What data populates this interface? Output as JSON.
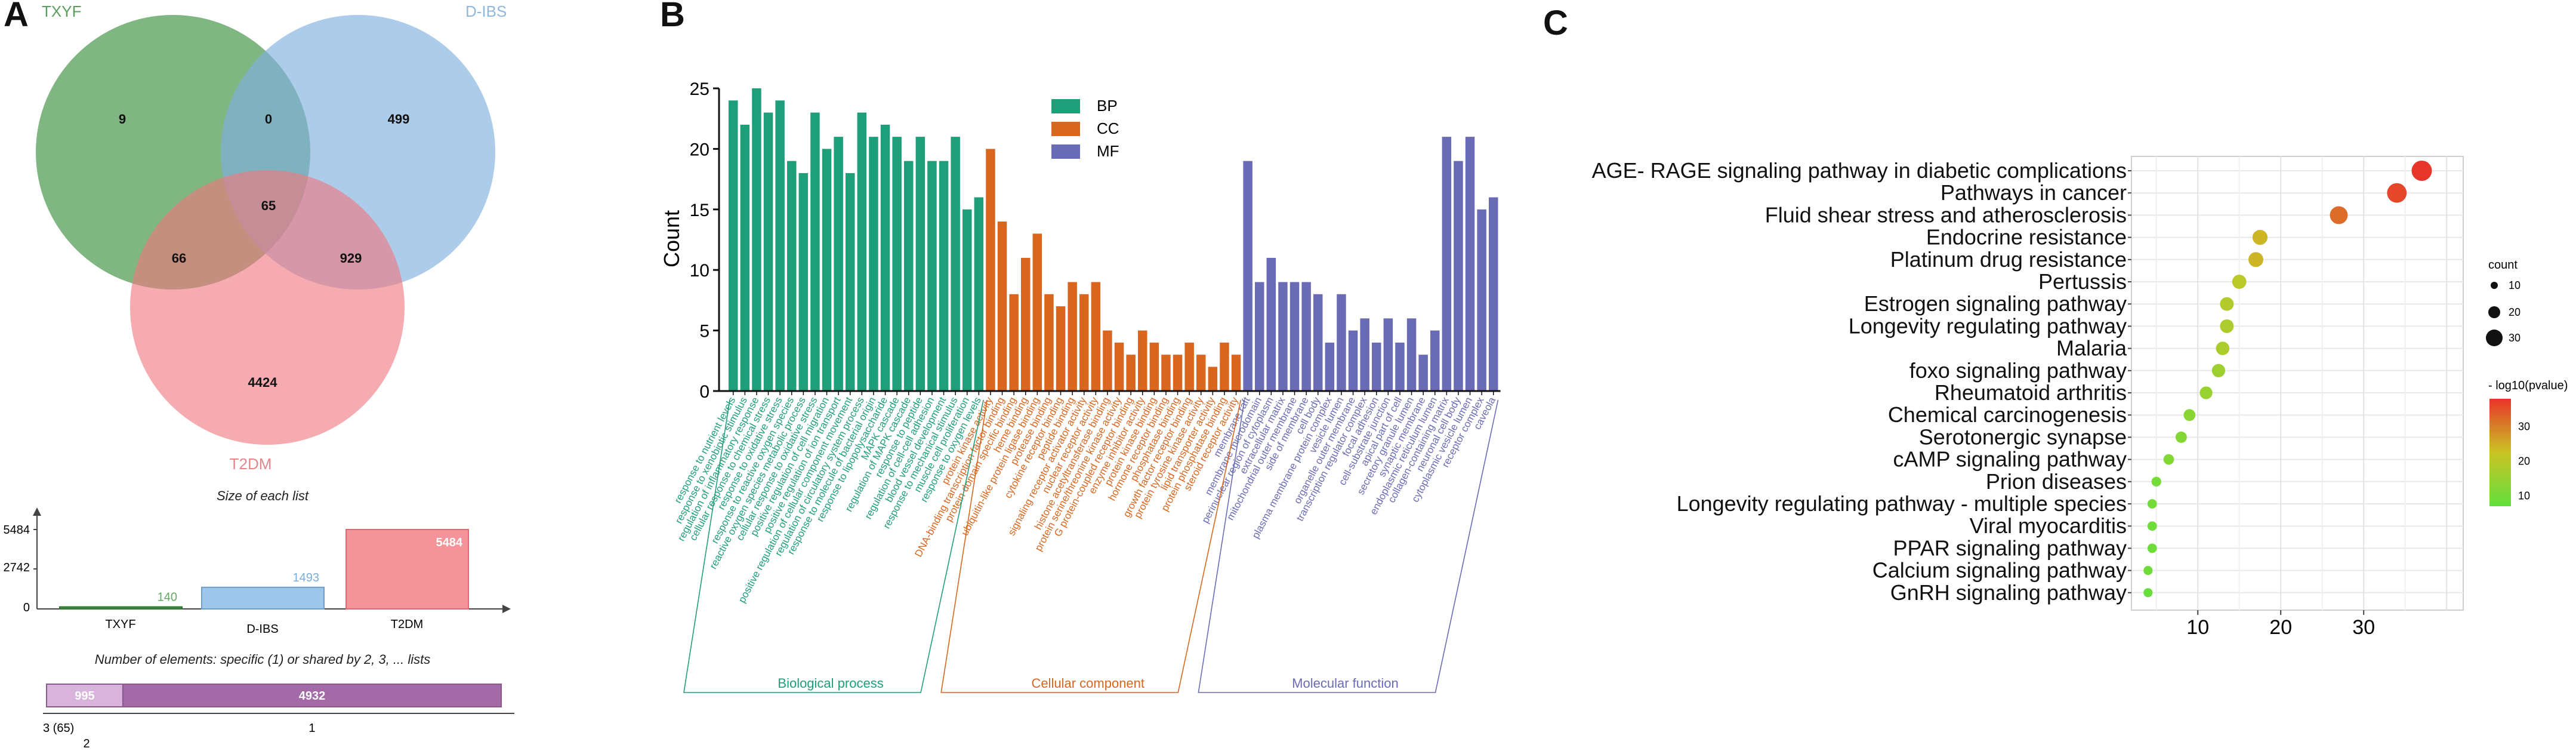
{
  "panels": {
    "a": "A",
    "b": "B",
    "c": "C"
  },
  "colors": {
    "txyf": "#4e9a50",
    "dibs": "#7fb0de",
    "t2dm": "#f07880",
    "bp": "#1f9e7a",
    "cc": "#d8661e",
    "mf": "#6a6bb5",
    "grad_high": "#e8352a",
    "grad_mid": "#c9c425",
    "grad_low": "#61e03c"
  },
  "venn": {
    "labels": {
      "txyf": "TXYF",
      "dibs": "D-IBS",
      "t2dm": "T2DM"
    },
    "counts": {
      "txyf_only": "9",
      "txyf_dibs": "0",
      "dibs_only": "499",
      "all": "65",
      "txyf_t2dm": "66",
      "dibs_t2dm": "929",
      "t2dm_only": "4424"
    }
  },
  "sizes_chart": {
    "title": "Size of each list",
    "yticks": [
      "5484",
      "2742",
      "0"
    ],
    "bars": [
      {
        "name": "TXYF",
        "value": 140,
        "label": "140"
      },
      {
        "name": "D-IBS",
        "value": 1493,
        "label": "1493"
      },
      {
        "name": "T2DM",
        "value": 5484,
        "label": "5484"
      }
    ],
    "ymax": 5484
  },
  "shared_chart": {
    "title": "Number of elements: specific (1) or shared by 2, 3, ... lists",
    "segments": [
      {
        "label": "995",
        "value": 995,
        "under": "2"
      },
      {
        "label": "4932",
        "value": 4932,
        "under": "1"
      }
    ],
    "small_label": "3 (65)"
  },
  "chart_data": [
    {
      "type": "bar",
      "title": "",
      "ylabel": "Count",
      "ylim": [
        0,
        25
      ],
      "yticks": [
        "25",
        "20",
        "15",
        "10",
        "5",
        "0"
      ],
      "legend": [
        "BP",
        "CC",
        "MF"
      ],
      "groups": [
        {
          "key": "bp",
          "label": "Biological process",
          "categories": [
            "response to nutrient levels",
            "response to xenobiotic stimulus",
            "regulation of inflammatory response",
            "cellular response to chemical stress",
            "response to oxidative stress",
            "response to reactive oxygen species",
            "reactive oxygen species metabolic process",
            "cellular response to oxidative stress",
            "positive regulation of cell migration",
            "positive regulation of ion transport",
            "positive regulation of cellular component movement",
            "regulation of circulatory system process",
            "response to molecule of bacterial origin",
            "response to lipopolysaccharide",
            "MAPK cascade",
            "regulation of MAPK cascade",
            "response to peptide",
            "regulation of cell-cell adhesion",
            "blood vessel development",
            "response to mechanical stimulus",
            "muscle cell proliferation",
            "response to oxygen levels"
          ],
          "values": [
            24,
            22,
            25,
            23,
            24,
            19,
            18,
            23,
            20,
            21,
            18,
            23,
            21,
            22,
            21,
            19,
            21,
            19,
            19,
            21,
            15,
            16
          ]
        },
        {
          "key": "cc",
          "label": "Cellular component",
          "categories": [
            "protein kinase activity",
            "DNA-binding transcription factor binding",
            "protein domain specific binding",
            "heme binding",
            "ubiquitin-like protein ligase binding",
            "protease binding",
            "cytokine receptor binding",
            "peptide binding",
            "signaling receptor activator activity",
            "nuclear receptor activity",
            "histone acetyltransferase binding",
            "protein serine/threonine kinase activity",
            "G protein-coupled receptor binding",
            "enzyme inhibitor activity",
            "protein kinase binding",
            "hormone receptor binding",
            "phosphatase binding",
            "growth factor receptor binding",
            "protein tyrosine kinase activity",
            "lipid transporter activity",
            "protein phosphatase binding",
            "steroid receptor activity"
          ],
          "values": [
            20,
            14,
            8,
            11,
            13,
            8,
            7,
            9,
            8,
            9,
            5,
            4,
            3,
            5,
            4,
            3,
            3,
            4,
            3,
            2,
            4,
            3
          ]
        },
        {
          "key": "mf",
          "label": "Molecular function",
          "categories": [
            "membrane raft",
            "membrane microdomain",
            "perinuclear region of cytoplasm",
            "extracellular matrix",
            "mitochondrial outer membrane",
            "side of membrane",
            "cell body",
            "plasma membrane protein complex",
            "vesicle lumen",
            "organelle outer membrane",
            "transcription regulator complex",
            "focal adhesion",
            "cell-substrate junction",
            "apical part of cell",
            "secretory granule lumen",
            "synaptic membrane",
            "endoplasmic reticulum lumen",
            "collagen-containing matrix",
            "neuronal cell body",
            "cytoplasmic vesicle lumen",
            "receptor complex",
            "caveola"
          ],
          "values": [
            19,
            9,
            11,
            9,
            9,
            9,
            8,
            4,
            8,
            5,
            6,
            4,
            6,
            4,
            6,
            3,
            5,
            21,
            19,
            21,
            15,
            16
          ]
        }
      ]
    },
    {
      "type": "scatter",
      "title": "",
      "xlabel": "",
      "xlim": [
        2,
        42
      ],
      "xticks": [
        10,
        20,
        30
      ],
      "pathways": [
        "AGE- RAGE signaling pathway in diabetic complications",
        "Pathways in cancer",
        "Fluid shear stress and atherosclerosis",
        "Endocrine resistance",
        "Platinum drug resistance",
        "Pertussis",
        "Estrogen signaling pathway",
        "Longevity regulating pathway",
        "Malaria",
        "foxo signaling pathway",
        "Rheumatoid arthritis",
        "Chemical carcinogenesis",
        "Serotonergic synapse",
        "cAMP signaling pathway",
        "Prion diseases",
        "Longevity regulating pathway -  multiple species",
        "Viral myocarditis",
        "PPAR signaling pathway",
        "Calcium signaling pathway",
        "GnRH signaling pathway"
      ],
      "x": [
        37,
        34,
        27,
        17.5,
        17,
        15,
        13.5,
        13.5,
        13,
        12.5,
        11,
        9,
        8,
        6.5,
        5,
        4.5,
        4.5,
        4.5,
        4,
        4
      ],
      "neglog10p": [
        38,
        36,
        32,
        24,
        24,
        20,
        19,
        18,
        18,
        16,
        15,
        13,
        12,
        12,
        10,
        10,
        9,
        9,
        9,
        8
      ],
      "size_legend": {
        "title": "count",
        "values": [
          10,
          20,
          30
        ]
      },
      "color_legend": {
        "title": "- log10(pvalue)",
        "ticks": [
          30,
          20,
          10
        ],
        "range": [
          7,
          38
        ]
      }
    }
  ]
}
